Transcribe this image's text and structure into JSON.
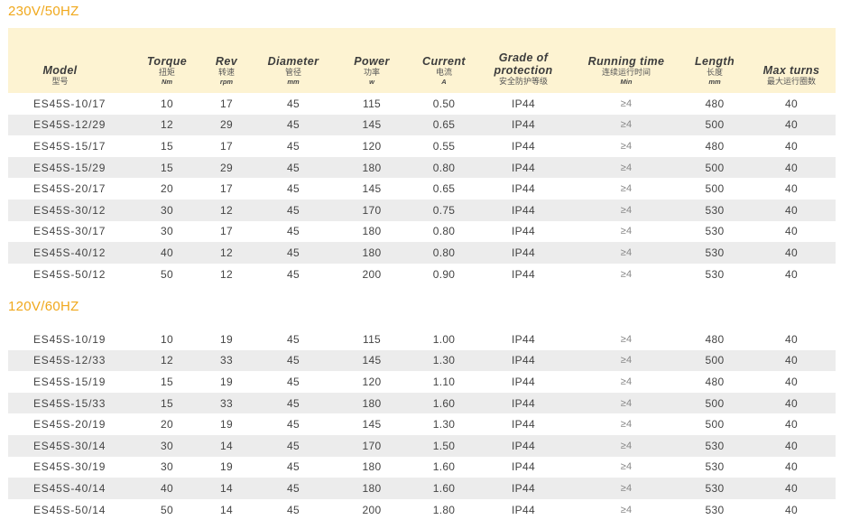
{
  "sections": [
    {
      "title": "230V/50HZ"
    },
    {
      "title": "120V/60HZ"
    }
  ],
  "header": {
    "columns": [
      {
        "en": "Model",
        "cn": "型号",
        "unit": ""
      },
      {
        "en": "Torque",
        "cn": "扭矩",
        "unit": "Nm"
      },
      {
        "en": "Rev",
        "cn": "转速",
        "unit": "rpm"
      },
      {
        "en": "Diameter",
        "cn": "管径",
        "unit": "mm"
      },
      {
        "en": "Power",
        "cn": "功率",
        "unit": "w"
      },
      {
        "en": "Current",
        "cn": "电流",
        "unit": "A"
      },
      {
        "en": "Grade of protection",
        "cn": "安全防护等级",
        "unit": ""
      },
      {
        "en": "Running time",
        "cn": "连续运行时间",
        "unit": "Min"
      },
      {
        "en": "Length",
        "cn": "长度",
        "unit": "mm"
      },
      {
        "en": "Max turns",
        "cn": "最大运行圈数",
        "unit": ""
      }
    ]
  },
  "table1": [
    [
      "ES45S-10/17",
      "10",
      "17",
      "45",
      "115",
      "0.50",
      "IP44",
      "≥4",
      "480",
      "40"
    ],
    [
      "ES45S-12/29",
      "12",
      "29",
      "45",
      "145",
      "0.65",
      "IP44",
      "≥4",
      "500",
      "40"
    ],
    [
      "ES45S-15/17",
      "15",
      "17",
      "45",
      "120",
      "0.55",
      "IP44",
      "≥4",
      "480",
      "40"
    ],
    [
      "ES45S-15/29",
      "15",
      "29",
      "45",
      "180",
      "0.80",
      "IP44",
      "≥4",
      "500",
      "40"
    ],
    [
      "ES45S-20/17",
      "20",
      "17",
      "45",
      "145",
      "0.65",
      "IP44",
      "≥4",
      "500",
      "40"
    ],
    [
      "ES45S-30/12",
      "30",
      "12",
      "45",
      "170",
      "0.75",
      "IP44",
      "≥4",
      "530",
      "40"
    ],
    [
      "ES45S-30/17",
      "30",
      "17",
      "45",
      "180",
      "0.80",
      "IP44",
      "≥4",
      "530",
      "40"
    ],
    [
      "ES45S-40/12",
      "40",
      "12",
      "45",
      "180",
      "0.80",
      "IP44",
      "≥4",
      "530",
      "40"
    ],
    [
      "ES45S-50/12",
      "50",
      "12",
      "45",
      "200",
      "0.90",
      "IP44",
      "≥4",
      "530",
      "40"
    ]
  ],
  "table2": [
    [
      "ES45S-10/19",
      "10",
      "19",
      "45",
      "115",
      "1.00",
      "IP44",
      "≥4",
      "480",
      "40"
    ],
    [
      "ES45S-12/33",
      "12",
      "33",
      "45",
      "145",
      "1.30",
      "IP44",
      "≥4",
      "500",
      "40"
    ],
    [
      "ES45S-15/19",
      "15",
      "19",
      "45",
      "120",
      "1.10",
      "IP44",
      "≥4",
      "480",
      "40"
    ],
    [
      "ES45S-15/33",
      "15",
      "33",
      "45",
      "180",
      "1.60",
      "IP44",
      "≥4",
      "500",
      "40"
    ],
    [
      "ES45S-20/19",
      "20",
      "19",
      "45",
      "145",
      "1.30",
      "IP44",
      "≥4",
      "500",
      "40"
    ],
    [
      "ES45S-30/14",
      "30",
      "14",
      "45",
      "170",
      "1.50",
      "IP44",
      "≥4",
      "530",
      "40"
    ],
    [
      "ES45S-30/19",
      "30",
      "19",
      "45",
      "180",
      "1.60",
      "IP44",
      "≥4",
      "530",
      "40"
    ],
    [
      "ES45S-40/14",
      "40",
      "14",
      "45",
      "180",
      "1.60",
      "IP44",
      "≥4",
      "530",
      "40"
    ],
    [
      "ES45S-50/14",
      "50",
      "14",
      "45",
      "200",
      "1.80",
      "IP44",
      "≥4",
      "530",
      "40"
    ]
  ],
  "colors": {
    "accent": "#f0a81c",
    "header_bg": "#fdf3d2",
    "row_alt": "#ececec"
  }
}
